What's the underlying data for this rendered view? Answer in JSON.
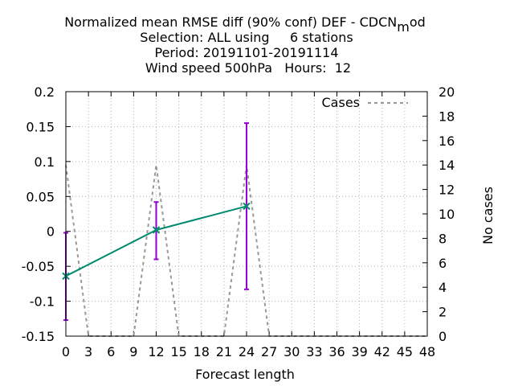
{
  "chart_data": {
    "type": "line",
    "title_lines": [
      "Normalized mean RMSE diff (90% conf) DEF - CDCN_mod",
      "Selection: ALL using     6 stations",
      "Period: 20191101-20191114",
      "Wind speed 500hPa   Hours:  12"
    ],
    "title_parts": {
      "prefix": "Normalized mean RMSE diff (90% conf) DEF - CDCN",
      "subscript": "m",
      "suffix": "od"
    },
    "xlabel": "Forecast length",
    "ylabel": "",
    "y2label": "No cases",
    "xlim": [
      0,
      48
    ],
    "ylim": [
      -0.15,
      0.2
    ],
    "y2lim": [
      0,
      20
    ],
    "x_ticks": [
      "0",
      "3",
      "6",
      "9",
      "12",
      "15",
      "18",
      "21",
      "24",
      "27",
      "30",
      "33",
      "36",
      "39",
      "42",
      "45",
      "48"
    ],
    "y_ticks": [
      "0.2",
      "0.15",
      "0.1",
      "0.05",
      "0",
      "-0.05",
      "-0.1",
      "-0.15"
    ],
    "y2_ticks": [
      "20",
      "18",
      "16",
      "14",
      "12",
      "10",
      "8",
      "6",
      "4",
      "2",
      "0"
    ],
    "grid": true,
    "legend_position": "top-right",
    "series": [
      {
        "name": "",
        "color": "#008a6e",
        "x": [
          0,
          12,
          24
        ],
        "y": [
          -0.064,
          0.002,
          0.036
        ],
        "err_low": [
          -0.127,
          -0.04,
          -0.083
        ],
        "err_high": [
          -0.002,
          0.042,
          0.155
        ],
        "err_color": "#9400d3"
      },
      {
        "name": "Cases",
        "axis": "y2",
        "color": "#999999",
        "style": "dashed",
        "x": [
          0,
          3,
          9,
          12,
          15,
          21,
          24,
          27,
          48
        ],
        "y": [
          14,
          0,
          0,
          14,
          0,
          0,
          14,
          0,
          0
        ]
      }
    ]
  }
}
